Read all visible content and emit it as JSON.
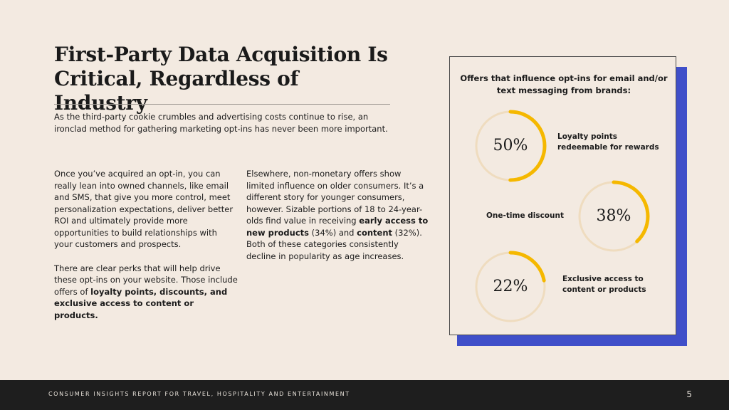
{
  "title": "First-Party Data Acquisition Is Critical, Regardless of Industry",
  "intro": "As the third-party cookie crumbles and advertising costs continue to rise, an ironclad method for gathering marketing opt-ins has never been more important.",
  "left_column": {
    "p1": "Once you’ve acquired an opt-in, you can really lean into owned channels, like email and SMS, that give you more control, meet personalization expectations, deliver better ROI and ultimately provide more opportunities to build relationships with your customers and prospects.",
    "p2_start": "There are clear perks that will help drive these opt-ins on your website. Those include offers of ",
    "p2_bold": "loyalty points, discounts, and exclusive access to content or products."
  },
  "right_column": {
    "t1": "Elsewhere, non-monetary offers show limited influence on older consumers. It’s a different story for younger consumers, however. Sizable portions of 18 to 24-year-olds find value in receiving ",
    "b1": "early access to new products",
    "t2": " (34%) and ",
    "b2": "content",
    "t3": " (32%). Both of these categories consistently decline in popularity as age increases."
  },
  "panel": {
    "heading": "Offers that influence opt-ins for email and/or text messaging from brands:",
    "accent_color": "#f5b800",
    "track_color": "#efdcbf",
    "shadow_color": "#3f4fc9",
    "offers": [
      {
        "value": 50,
        "display": "50%",
        "label": "Loyalty points redeemable for rewards"
      },
      {
        "value": 38,
        "display": "38%",
        "label": "One-time discount"
      },
      {
        "value": 22,
        "display": "22%",
        "label": "Exclusive access to content or products"
      }
    ]
  },
  "footer": {
    "text": "CONSUMER INSIGHTS REPORT FOR TRAVEL, HOSPITALITY AND ENTERTAINMENT",
    "page": "5"
  }
}
